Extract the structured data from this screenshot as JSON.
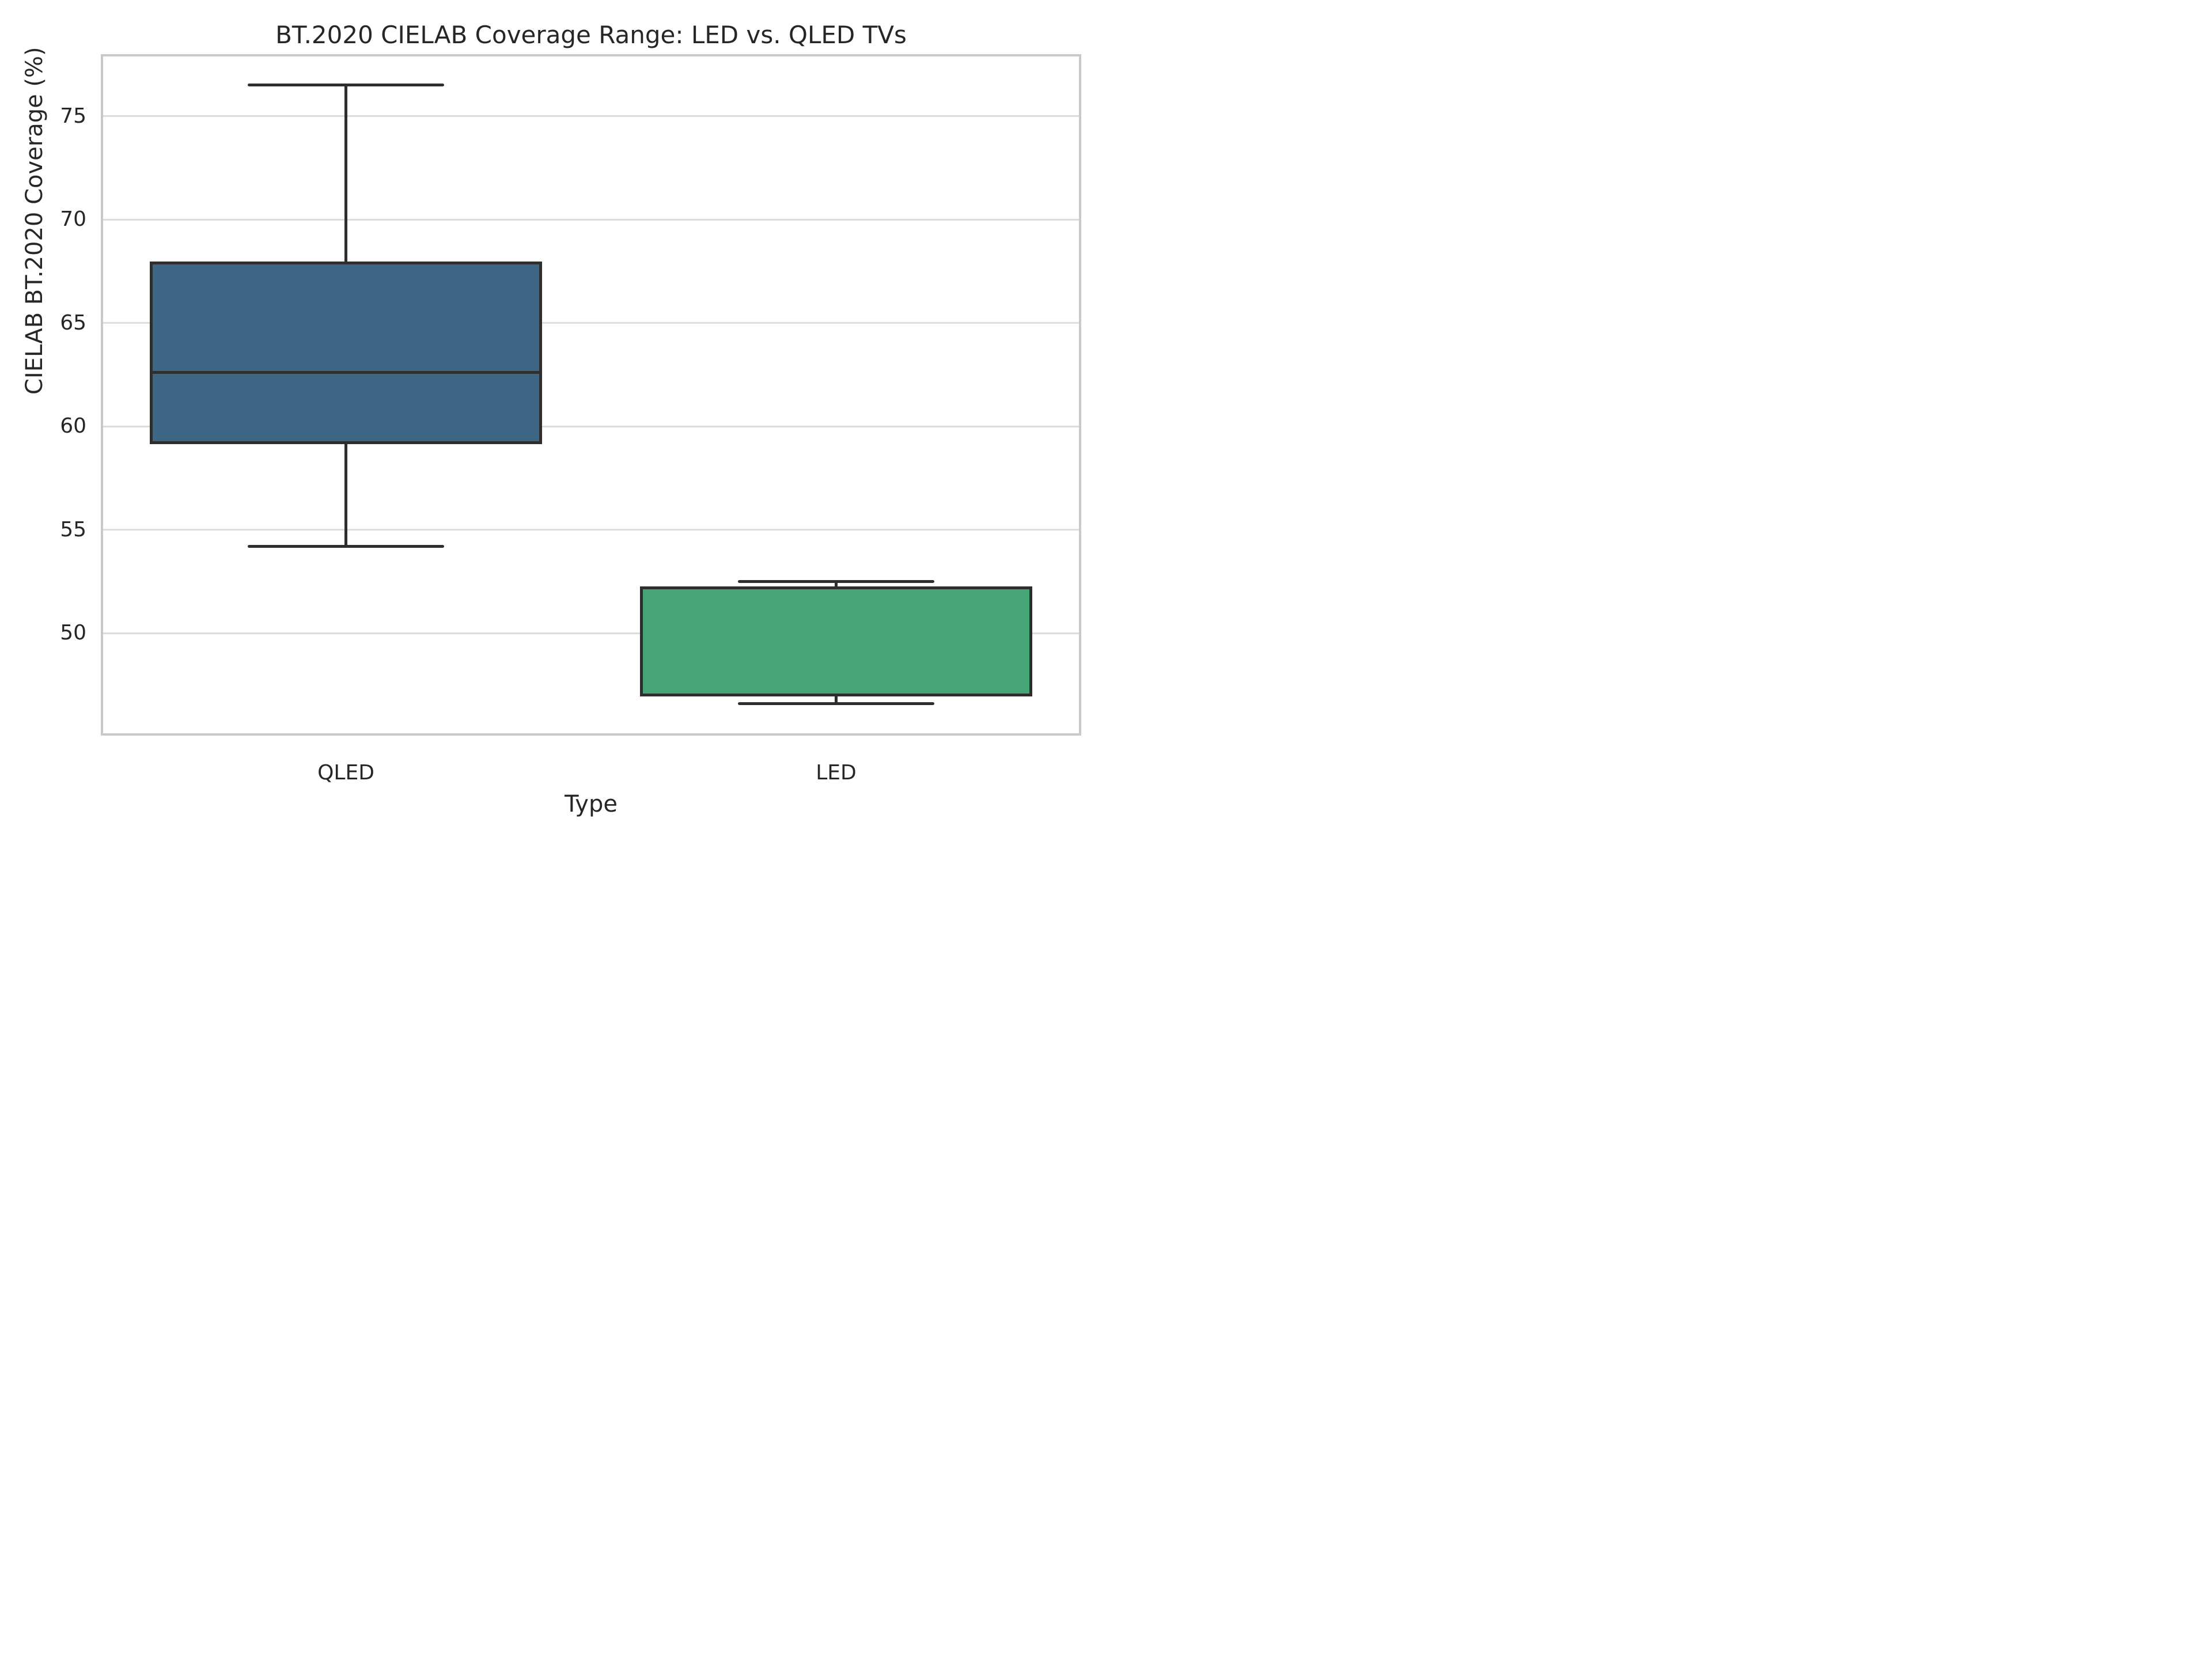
{
  "chart_data": {
    "type": "box",
    "title": "BT.2020 CIELAB Coverage Range: LED vs. QLED TVs",
    "xlabel": "Type",
    "ylabel": "CIELAB BT.2020 Coverage (%)",
    "categories": [
      "QLED",
      "LED"
    ],
    "yticks": [
      50,
      55,
      60,
      65,
      70,
      75
    ],
    "ylim": [
      45.05,
      78.0
    ],
    "grid": "horizontal-only",
    "legend": "none",
    "series": [
      {
        "name": "QLED",
        "whisker_low": 54.2,
        "q1": 59.2,
        "median": 62.6,
        "q3": 67.9,
        "whisker_high": 76.5,
        "fill_color": "#3D6684"
      },
      {
        "name": "LED",
        "whisker_low": 46.6,
        "q1": 47.0,
        "median": 52.2,
        "q3": 52.2,
        "whisker_high": 52.5,
        "fill_color": "#45A577"
      }
    ],
    "colors": {
      "edge": "#2e2e2e",
      "grid_line": "#dcdcdc",
      "spine": "#c9c9c9",
      "text": "#262626",
      "background": "#ffffff"
    }
  }
}
